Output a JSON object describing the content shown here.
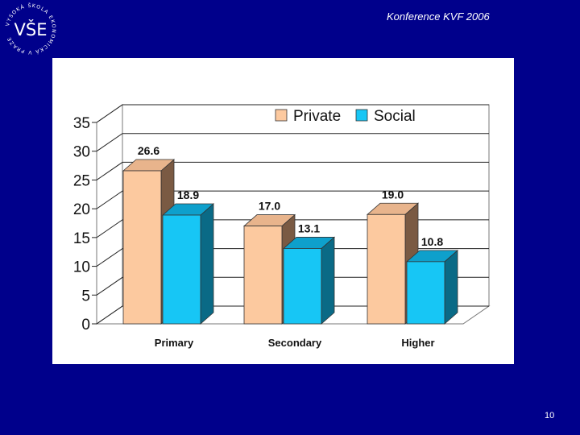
{
  "header": {
    "logo_text": "VŠE",
    "logo_ring_text": "VYSOKÁ ŠKOLA EKONOMICKÁ V PRAZE",
    "conference_title": "Konference KVF 2006"
  },
  "footer": {
    "page_number": "10"
  },
  "colors": {
    "background": "#00008b",
    "private": "#fcc99f",
    "private_side": "#7a5a43",
    "social": "#17c6f5",
    "social_side": "#0a6a86"
  },
  "chart_data": {
    "type": "bar",
    "categories": [
      "Primary",
      "Secondary",
      "Higher"
    ],
    "series": [
      {
        "name": "Private",
        "values": [
          26.6,
          17.0,
          19.0
        ],
        "labels": [
          "26.6",
          "17.0",
          "19.0"
        ]
      },
      {
        "name": "Social",
        "values": [
          18.9,
          13.1,
          10.8
        ],
        "labels": [
          "18.9",
          "13.1",
          "10.8"
        ]
      }
    ],
    "yticks": [
      "0",
      "5",
      "10",
      "15",
      "20",
      "25",
      "30",
      "35"
    ],
    "ylim": [
      0,
      35
    ],
    "grid": true,
    "legend_position": "top",
    "style": "3d"
  }
}
